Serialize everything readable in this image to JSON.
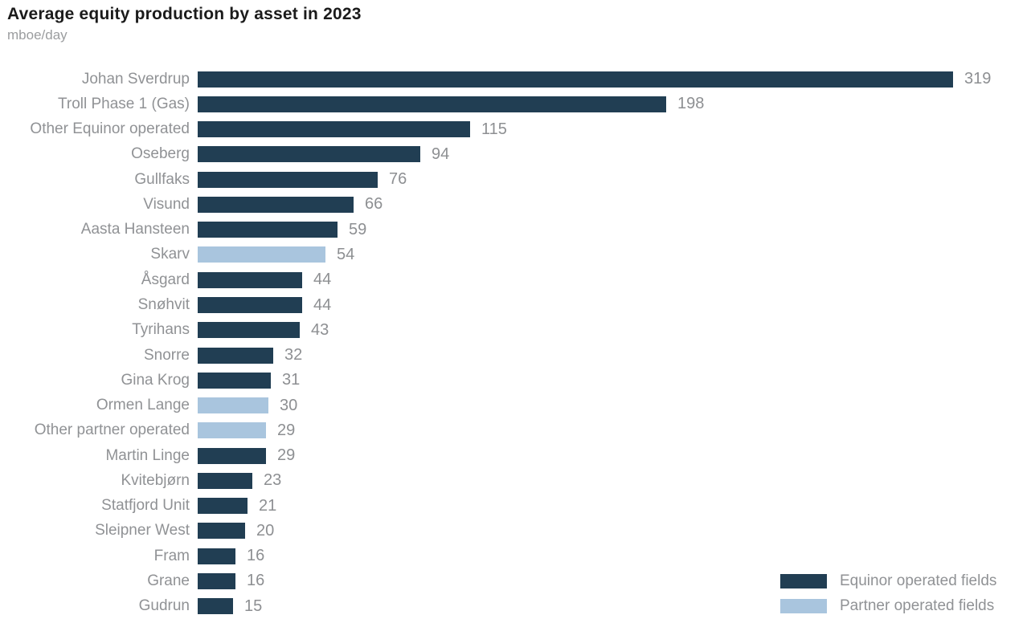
{
  "header": {
    "title": "Average equity production by asset in 2023",
    "subtitle": "mboe/day"
  },
  "colors": {
    "equinor_operated": "#213E53",
    "partner_operated": "#A9C5DE",
    "text_gray": "#909295",
    "title_black": "#1B1B1B",
    "background": "#FFFFFF"
  },
  "legend": {
    "position": "bottom-right",
    "items": [
      {
        "key": "equinor",
        "label": "Equinor operated fields",
        "color": "#213E53"
      },
      {
        "key": "partner",
        "label": "Partner operated fields",
        "color": "#A9C5DE"
      }
    ]
  },
  "chart_data": {
    "type": "bar",
    "orientation": "horizontal",
    "title": "Average equity production by asset in 2023",
    "unit": "mboe/day",
    "xlim": [
      0,
      319
    ],
    "value_labels": "end-of-bar",
    "grid": false,
    "categories": [
      "Johan Sverdrup",
      "Troll Phase 1 (Gas)",
      "Other Equinor operated",
      "Oseberg",
      "Gullfaks",
      "Visund",
      "Aasta Hansteen",
      "Skarv",
      "Åsgard",
      "Snøhvit",
      "Tyrihans",
      "Snorre",
      "Gina Krog",
      "Ormen Lange",
      "Other partner operated",
      "Martin Linge",
      "Kvitebjørn",
      "Statfjord Unit",
      "Sleipner West",
      "Fram",
      "Grane",
      "Gudrun"
    ],
    "values": [
      319,
      198,
      115,
      94,
      76,
      66,
      59,
      54,
      44,
      44,
      43,
      32,
      31,
      30,
      29,
      29,
      23,
      21,
      20,
      16,
      16,
      15
    ],
    "operators": [
      "equinor",
      "equinor",
      "equinor",
      "equinor",
      "equinor",
      "equinor",
      "equinor",
      "partner",
      "equinor",
      "equinor",
      "equinor",
      "equinor",
      "equinor",
      "partner",
      "partner",
      "equinor",
      "equinor",
      "equinor",
      "equinor",
      "equinor",
      "equinor",
      "equinor"
    ]
  }
}
